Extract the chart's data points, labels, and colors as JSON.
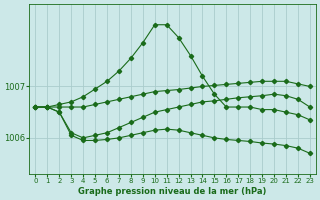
{
  "background_color": "#cce8e8",
  "grid_color": "#aacccc",
  "line_color": "#1a6b1a",
  "title": "Graphe pression niveau de la mer (hPa)",
  "ylabel_ticks": [
    1006,
    1007
  ],
  "xlim": [
    -0.5,
    23.5
  ],
  "ylim": [
    1005.3,
    1008.6
  ],
  "xticks": [
    0,
    1,
    2,
    3,
    4,
    5,
    6,
    7,
    8,
    9,
    10,
    11,
    12,
    13,
    14,
    15,
    16,
    17,
    18,
    19,
    20,
    21,
    22,
    23
  ],
  "series": [
    {
      "x": [
        0,
        1,
        2,
        3,
        4,
        5,
        6,
        7,
        8,
        9,
        10,
        11,
        12,
        13,
        14,
        15,
        16,
        17,
        18,
        19,
        20,
        21,
        22,
        23
      ],
      "y": [
        1006.6,
        1006.6,
        1006.65,
        1006.7,
        1006.8,
        1006.95,
        1007.1,
        1007.3,
        1007.55,
        1007.85,
        1008.2,
        1008.2,
        1007.95,
        1007.6,
        1007.2,
        1006.85,
        1006.6,
        1006.6,
        1006.6,
        1006.55,
        1006.55,
        1006.5,
        1006.45,
        1006.35
      ]
    },
    {
      "x": [
        0,
        1,
        2,
        3,
        4,
        5,
        6,
        7,
        8,
        9,
        10,
        11,
        12,
        13,
        14,
        15,
        16,
        17,
        18,
        19,
        20,
        21,
        22,
        23
      ],
      "y": [
        1006.6,
        1006.6,
        1006.6,
        1006.6,
        1006.6,
        1006.65,
        1006.7,
        1006.75,
        1006.8,
        1006.85,
        1006.9,
        1006.92,
        1006.94,
        1006.97,
        1007.0,
        1007.02,
        1007.04,
        1007.06,
        1007.08,
        1007.1,
        1007.1,
        1007.1,
        1007.05,
        1007.0
      ]
    },
    {
      "x": [
        0,
        1,
        2,
        3,
        4,
        5,
        6,
        7,
        8,
        9,
        10,
        11,
        12,
        13,
        14,
        15,
        16,
        17,
        18,
        19,
        20,
        21,
        22,
        23
      ],
      "y": [
        1006.6,
        1006.6,
        1006.5,
        1006.1,
        1006.0,
        1006.05,
        1006.1,
        1006.2,
        1006.3,
        1006.4,
        1006.5,
        1006.55,
        1006.6,
        1006.65,
        1006.7,
        1006.72,
        1006.75,
        1006.78,
        1006.8,
        1006.82,
        1006.85,
        1006.82,
        1006.75,
        1006.6
      ]
    },
    {
      "x": [
        0,
        1,
        2,
        3,
        4,
        5,
        6,
        7,
        8,
        9,
        10,
        11,
        12,
        13,
        14,
        15,
        16,
        17,
        18,
        19,
        20,
        21,
        22,
        23
      ],
      "y": [
        1006.6,
        1006.6,
        1006.5,
        1006.05,
        1005.95,
        1005.95,
        1005.97,
        1006.0,
        1006.05,
        1006.1,
        1006.15,
        1006.17,
        1006.15,
        1006.1,
        1006.05,
        1006.0,
        1005.97,
        1005.95,
        1005.93,
        1005.9,
        1005.88,
        1005.85,
        1005.8,
        1005.7
      ]
    }
  ]
}
